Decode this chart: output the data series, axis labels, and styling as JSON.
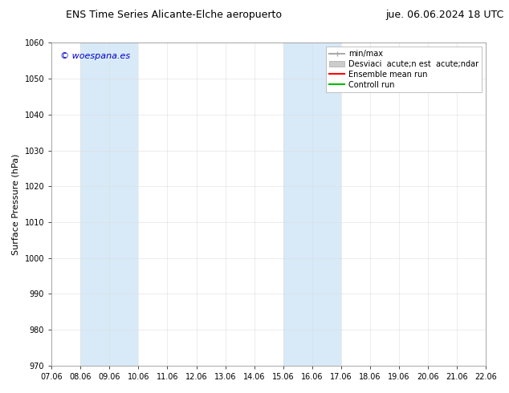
{
  "title_left": "ENS Time Series Alicante-Elche aeropuerto",
  "title_right": "jue. 06.06.2024 18 UTC",
  "ylabel": "Surface Pressure (hPa)",
  "ylim": [
    970,
    1060
  ],
  "yticks": [
    970,
    980,
    990,
    1000,
    1010,
    1020,
    1030,
    1040,
    1050,
    1060
  ],
  "xtick_labels": [
    "07.06",
    "08.06",
    "09.06",
    "10.06",
    "11.06",
    "12.06",
    "13.06",
    "14.06",
    "15.06",
    "16.06",
    "17.06",
    "18.06",
    "19.06",
    "20.06",
    "21.06",
    "22.06"
  ],
  "band_color": "#d8eaf8",
  "band_ranges": [
    [
      1,
      3
    ],
    [
      8,
      10
    ],
    [
      15,
      16
    ]
  ],
  "watermark": "© woespana.es",
  "watermark_color": "#0000cc",
  "background_color": "#ffffff",
  "legend_labels": [
    "min/max",
    "Desviaci  acute;n est  acute;ndar",
    "Ensemble mean run",
    "Controll run"
  ],
  "legend_colors": [
    "#aaaaaa",
    "#cccccc",
    "#ff0000",
    "#00bb00"
  ],
  "title_fontsize": 9,
  "tick_fontsize": 7,
  "ylabel_fontsize": 8,
  "legend_fontsize": 7
}
